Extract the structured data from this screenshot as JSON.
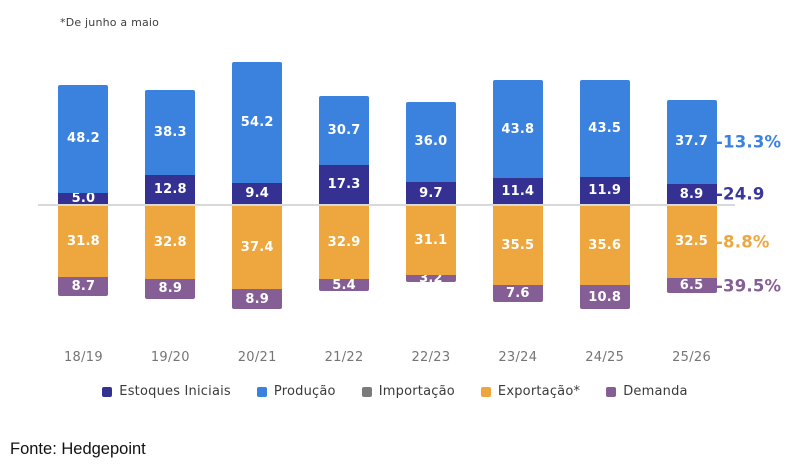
{
  "note": "*De junho a maio",
  "source": "Fonte: Hedgepoint",
  "chart_data": {
    "type": "bar",
    "subtype": "diverging_stacked_column",
    "title": "",
    "categories": [
      "18/19",
      "19/20",
      "20/21",
      "21/22",
      "22/23",
      "23/24",
      "24/25",
      "25/26"
    ],
    "series": [
      {
        "name": "Estoques Iniciais",
        "color": "#343192",
        "direction": "up",
        "stack_order": 0,
        "values": [
          5.0,
          12.8,
          9.4,
          17.3,
          9.7,
          11.4,
          11.9,
          8.9
        ]
      },
      {
        "name": "Produção",
        "color": "#3B82DF",
        "direction": "up",
        "stack_order": 1,
        "values": [
          48.2,
          38.3,
          54.2,
          30.7,
          36.0,
          43.8,
          43.5,
          37.7
        ]
      },
      {
        "name": "Exportação*",
        "color": "#EEA73E",
        "direction": "down",
        "stack_order": 0,
        "values": [
          31.8,
          32.8,
          37.4,
          32.9,
          31.1,
          35.5,
          35.6,
          32.5
        ]
      },
      {
        "name": "Demanda",
        "color": "#855E95",
        "direction": "down",
        "stack_order": 1,
        "values": [
          8.7,
          8.9,
          8.9,
          5.4,
          3.2,
          7.6,
          10.8,
          6.5
        ]
      }
    ],
    "legend": [
      {
        "label": "Estoques Iniciais",
        "color": "#343192"
      },
      {
        "label": "Produção",
        "color": "#3B82DF"
      },
      {
        "label": "Importação",
        "color": "#7B7B7B"
      },
      {
        "label": "Exportação*",
        "color": "#EEA73E"
      },
      {
        "label": "Demanda",
        "color": "#855E95"
      }
    ],
    "annotations": [
      {
        "label": "-13.3%",
        "series": "Produção",
        "color": "#3B82DF"
      },
      {
        "label": "-24.9",
        "series": "Estoques Iniciais",
        "color": "#3A379B"
      },
      {
        "label": "-8.8%",
        "series": "Exportação*",
        "color": "#EEA73E"
      },
      {
        "label": "-39.5%",
        "series": "Demanda",
        "color": "#855E95"
      }
    ],
    "baseline_color": "#D9D9D9",
    "value_label_color": "#FFFFFF",
    "axis_label_color": "#757575",
    "legend_position": "bottom",
    "gridlines": false,
    "value_decimals": 1
  }
}
